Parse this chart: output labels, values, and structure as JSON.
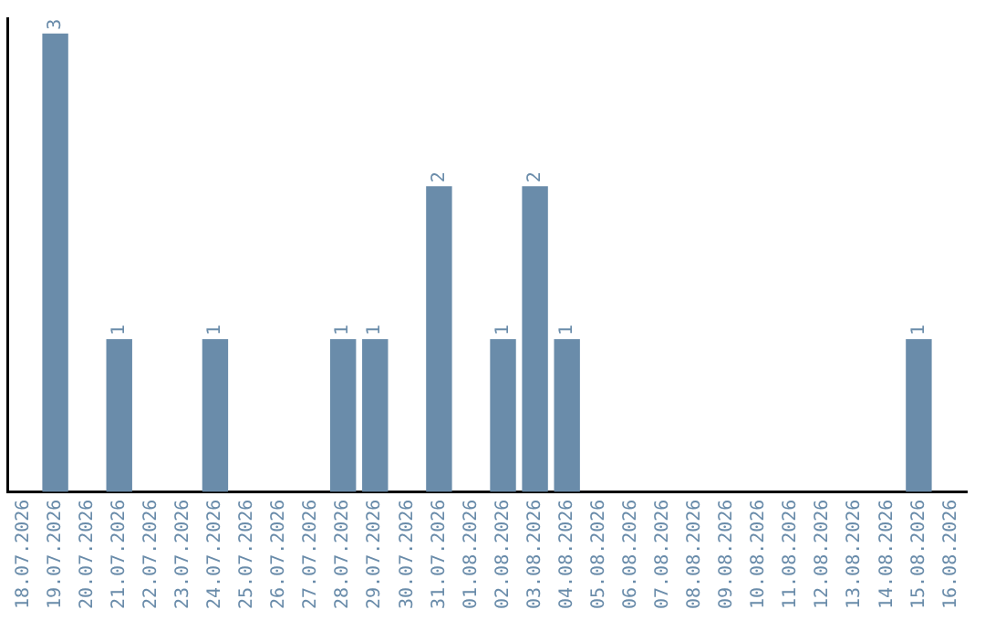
{
  "chart_data": {
    "type": "bar",
    "categories": [
      "18.07.2026",
      "19.07.2026",
      "20.07.2026",
      "21.07.2026",
      "22.07.2026",
      "23.07.2026",
      "24.07.2026",
      "25.07.2026",
      "26.07.2026",
      "27.07.2026",
      "28.07.2026",
      "29.07.2026",
      "30.07.2026",
      "31.07.2026",
      "01.08.2026",
      "02.08.2026",
      "03.08.2026",
      "04.08.2026",
      "05.08.2026",
      "06.08.2026",
      "07.08.2026",
      "08.08.2026",
      "09.08.2026",
      "10.08.2026",
      "11.08.2026",
      "12.08.2026",
      "13.08.2026",
      "14.08.2026",
      "15.08.2026",
      "16.08.2026"
    ],
    "values": [
      0,
      3,
      0,
      1,
      0,
      0,
      1,
      0,
      0,
      0,
      1,
      1,
      0,
      2,
      0,
      1,
      2,
      1,
      0,
      0,
      0,
      0,
      0,
      0,
      0,
      0,
      0,
      0,
      1,
      0
    ],
    "value_labels": [
      null,
      "3",
      null,
      "1",
      null,
      null,
      "1",
      null,
      null,
      null,
      "1",
      "1",
      null,
      "2",
      null,
      "1",
      "2",
      "1",
      null,
      null,
      null,
      null,
      null,
      null,
      null,
      null,
      null,
      null,
      "1",
      null
    ],
    "color": "#6a8caa",
    "ylim": [
      0,
      3.1
    ],
    "tick_labels": "x",
    "grid": false,
    "legend": false
  }
}
